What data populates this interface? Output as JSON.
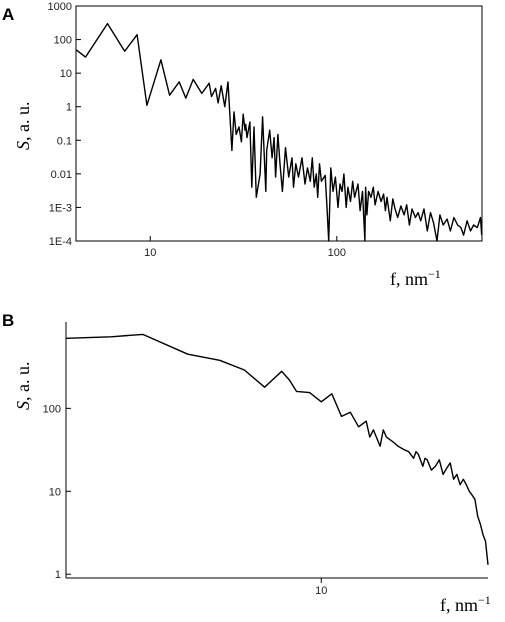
{
  "chart_data": [
    {
      "panel": "A",
      "type": "line",
      "title": "",
      "xlabel": "f, nm⁻¹",
      "ylabel": "S, a. u.",
      "xscale": "log",
      "yscale": "log",
      "xlim": [
        4,
        600
      ],
      "ylim": [
        0.0001,
        1000
      ],
      "xticks": [
        {
          "v": 10,
          "label": "10"
        },
        {
          "v": 100,
          "label": "100"
        }
      ],
      "yticks": [
        {
          "v": 1000,
          "label": "1000"
        },
        {
          "v": 100,
          "label": "100"
        },
        {
          "v": 10,
          "label": "10"
        },
        {
          "v": 1,
          "label": "1"
        },
        {
          "v": 0.1,
          "label": "0.1"
        },
        {
          "v": 0.01,
          "label": "0.01"
        },
        {
          "v": 0.001,
          "label": "1E-3"
        },
        {
          "v": 0.0001,
          "label": "1E-4"
        }
      ],
      "grid": false,
      "series": [
        {
          "x": [
            4.0,
            4.5,
            5.9,
            7.3,
            8.5,
            9.6,
            11.4,
            12.7,
            14.3,
            15.5,
            17.0,
            18.9,
            20.7,
            21.3,
            22.4,
            23.1,
            24.0,
            25.1,
            26.1,
            27.4,
            28.1,
            28.9,
            29.9,
            30.8,
            31.5,
            32.2,
            32.5,
            33.0,
            34.2,
            35.0,
            36.0,
            37.0,
            38.8,
            40.0,
            41.6,
            42.1,
            43.7,
            45.0,
            46.1,
            47.0,
            48.3,
            49.6,
            51.1,
            53.1,
            55.2,
            57.5,
            58.6,
            60.3,
            62.3,
            65.1,
            67.5,
            69.6,
            72.1,
            73.9,
            75.6,
            77.6,
            79.0,
            80.8,
            82.7,
            86.6,
            88.6,
            90.5,
            92.8,
            95.4,
            98.3,
            101.5,
            104.0,
            106.8,
            109.1,
            112.3,
            114.6,
            118.4,
            121.6,
            124.6,
            129.8,
            133.3,
            137.3,
            141.4,
            142.6,
            145.0,
            148.1,
            152.4,
            156.8,
            160.3,
            166.4,
            172.7,
            178.2,
            182.1,
            185.7,
            193.4,
            199.5,
            205.3,
            211.9,
            220.6,
            229.3,
            236.8,
            244.8,
            252.9,
            263.6,
            272.6,
            281.6,
            293.4,
            305.4,
            317.9,
            329.7,
            344.3,
            356.8,
            371.7,
            390.0,
            406.3,
            424.1,
            444.2,
            462.3,
            478.0,
            499.0,
            520.4,
            541.2,
            566.0,
            588.8,
            597.5
          ],
          "y": [
            50,
            30,
            300,
            45,
            140,
            1.1,
            25,
            2.2,
            5.5,
            1.8,
            6.5,
            2.5,
            5.0,
            2.0,
            3.5,
            1.3,
            4.2,
            1.0,
            5.5,
            0.05,
            0.7,
            0.15,
            0.25,
            0.09,
            0.6,
            0.2,
            0.3,
            0.12,
            0.35,
            0.004,
            0.25,
            0.002,
            0.01,
            0.5,
            0.003,
            0.05,
            0.2,
            0.03,
            0.12,
            0.008,
            0.15,
            0.02,
            0.003,
            0.06,
            0.008,
            0.03,
            0.004,
            0.02,
            0.008,
            0.03,
            0.005,
            0.015,
            0.006,
            0.03,
            0.004,
            0.01,
            0.002,
            0.02,
            0.006,
            0.009,
            0.001,
            0.0001,
            0.015,
            0.003,
            0.008,
            0.001,
            0.005,
            0.003,
            0.01,
            0.001,
            0.004,
            0.0015,
            0.006,
            0.002,
            0.005,
            0.0008,
            0.003,
            0.0001,
            0.004,
            0.0006,
            0.003,
            0.002,
            0.004,
            0.0012,
            0.003,
            0.0015,
            0.0025,
            0.0008,
            0.002,
            0.0004,
            0.0018,
            0.0009,
            0.0005,
            0.0011,
            0.0006,
            0.0012,
            0.0003,
            0.0009,
            0.0005,
            0.0007,
            0.0004,
            0.0009,
            0.0002,
            0.0007,
            0.00035,
            0.0001,
            0.0006,
            0.0003,
            0.00045,
            0.0002,
            0.0005,
            0.0003,
            0.00025,
            0.00015,
            0.0004,
            0.0002,
            0.0003,
            0.00025,
            0.0005,
            0.00015
          ]
        }
      ]
    },
    {
      "panel": "B",
      "type": "line",
      "title": "",
      "xlabel": "f, nm⁻¹",
      "ylabel": "S, a. u.",
      "xscale": "log",
      "yscale": "log",
      "xlim": [
        1,
        45
      ],
      "ylim": [
        0.9,
        1100
      ],
      "xticks": [
        {
          "v": 10,
          "label": "10"
        }
      ],
      "yticks": [
        {
          "v": 100,
          "label": "100"
        },
        {
          "v": 10,
          "label": "10"
        },
        {
          "v": 1,
          "label": "1"
        }
      ],
      "grid": false,
      "series": [
        {
          "x": [
            1.0,
            1.5,
            2.0,
            3.0,
            4.0,
            5.0,
            6.0,
            7.0,
            7.5,
            8.0,
            9.0,
            10.0,
            11.0,
            12.0,
            13.0,
            14.0,
            15.0,
            15.5,
            16.0,
            17.0,
            17.5,
            18.0,
            19.0,
            20.0,
            21.0,
            22.0,
            23.0,
            23.5,
            24.0,
            25.0,
            25.5,
            26.0,
            27.0,
            28.0,
            29.0,
            30.0,
            31.0,
            32.0,
            33.0,
            34.0,
            35.0,
            36.0,
            37.0,
            38.0,
            39.0,
            40.0,
            41.0,
            42.0,
            43.0,
            44.0,
            45.0
          ],
          "y": [
            700,
            730,
            780,
            450,
            380,
            290,
            180,
            280,
            220,
            160,
            155,
            120,
            150,
            80,
            90,
            60,
            70,
            45,
            55,
            35,
            55,
            45,
            40,
            35,
            32,
            30,
            25,
            30,
            28,
            20,
            25,
            24,
            18,
            20,
            24,
            16,
            19,
            22,
            14,
            16,
            12,
            14,
            12,
            10,
            9,
            8,
            5,
            4,
            3,
            2.5,
            1.3
          ]
        }
      ]
    }
  ]
}
